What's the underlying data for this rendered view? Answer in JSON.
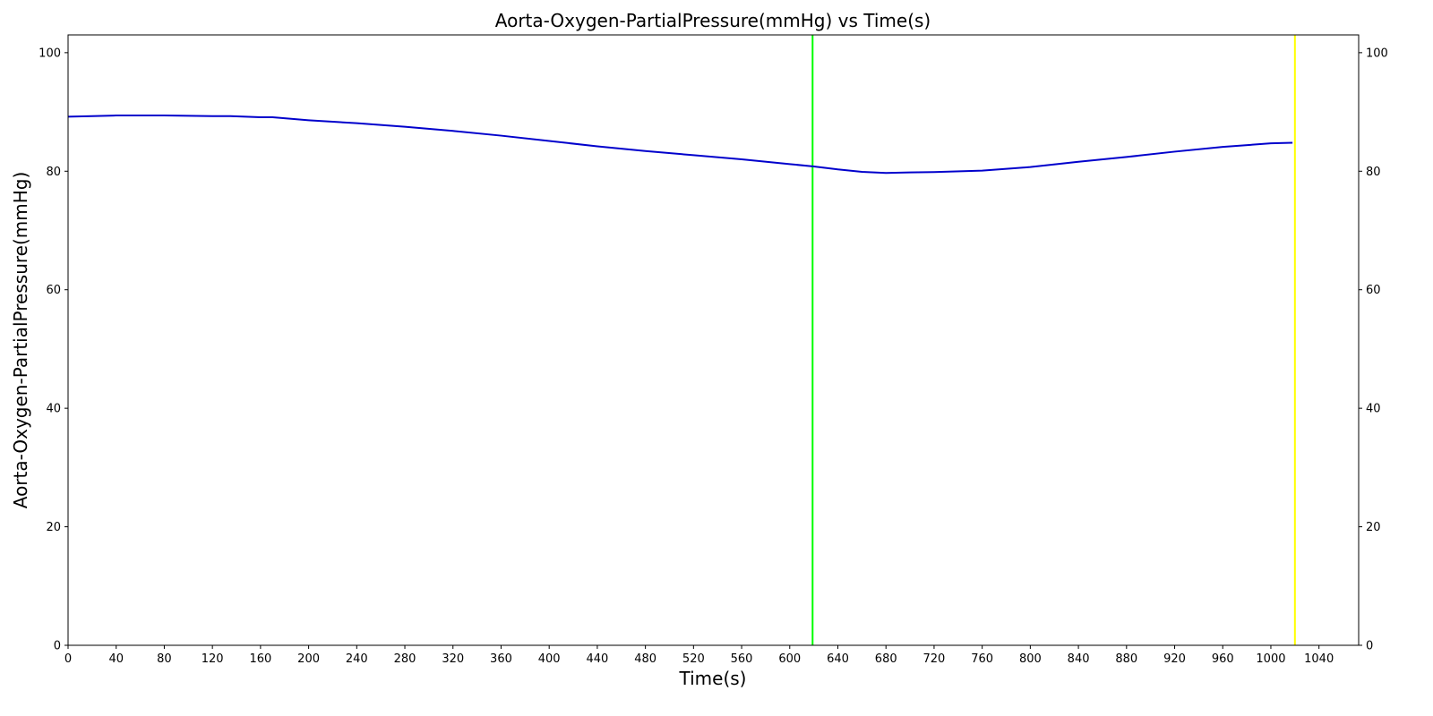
{
  "chart_data": {
    "type": "line",
    "title": "Aorta-Oxygen-PartialPressure(mmHg) vs Time(s)",
    "xlabel": "Time(s)",
    "ylabel": "Aorta-Oxygen-PartialPressure(mmHg)",
    "xlim": [
      0,
      1073
    ],
    "ylim": [
      0,
      103
    ],
    "grid": false,
    "x_ticks": [
      0,
      40,
      80,
      120,
      160,
      200,
      240,
      280,
      320,
      360,
      400,
      440,
      480,
      520,
      560,
      600,
      640,
      680,
      720,
      760,
      800,
      840,
      880,
      920,
      960,
      1000,
      1040
    ],
    "y_ticks": [
      0,
      20,
      40,
      60,
      80,
      100
    ],
    "right_y_ticks": [
      0,
      20,
      40,
      60,
      80,
      100
    ],
    "series": [
      {
        "color": "#0000cc",
        "x": [
          0,
          20,
          40,
          60,
          80,
          100,
          120,
          135,
          160,
          170,
          200,
          240,
          280,
          320,
          360,
          400,
          440,
          480,
          520,
          560,
          600,
          620,
          640,
          660,
          680,
          700,
          720,
          760,
          800,
          840,
          880,
          920,
          960,
          1000,
          1018
        ],
        "y": [
          89.2,
          89.3,
          89.4,
          89.4,
          89.4,
          89.35,
          89.3,
          89.3,
          89.1,
          89.1,
          88.6,
          88.1,
          87.5,
          86.8,
          86.0,
          85.1,
          84.2,
          83.4,
          82.7,
          82.0,
          81.2,
          80.8,
          80.3,
          79.9,
          79.7,
          79.8,
          79.85,
          80.1,
          80.7,
          81.6,
          82.4,
          83.3,
          84.1,
          84.7,
          84.8
        ]
      }
    ],
    "vlines": [
      {
        "x": 619,
        "color": "#00ff00"
      },
      {
        "x": 1020,
        "color": "#ffff00"
      }
    ]
  }
}
